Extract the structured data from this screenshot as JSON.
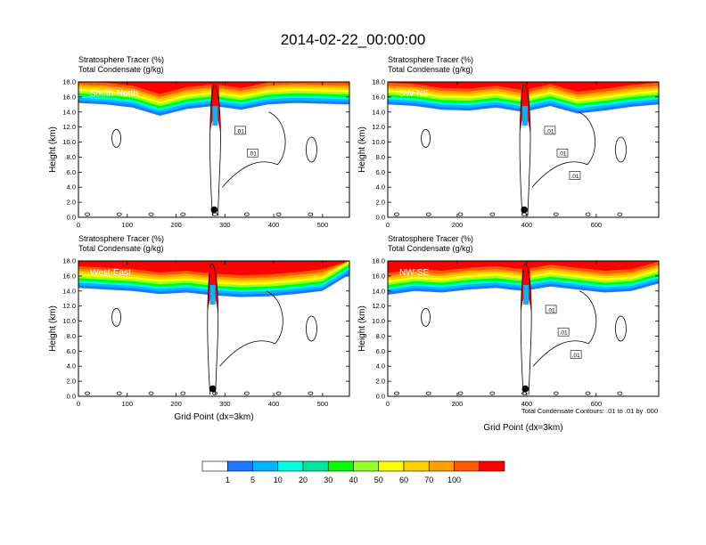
{
  "title": "2014-02-22_00:00:00",
  "footnote": "Total Condensate Contours: .01 to .01 by .000",
  "colorbar": {
    "labels": [
      "1",
      "5",
      "10",
      "20",
      "30",
      "40",
      "50",
      "60",
      "70",
      "100"
    ],
    "colors": [
      "#ffffff",
      "#1e78ff",
      "#00b4ff",
      "#00ffe1",
      "#00e6a0",
      "#00ff00",
      "#96ff28",
      "#ffff00",
      "#ffd200",
      "#ffa000",
      "#ff5a00",
      "#ff0000"
    ]
  },
  "chart_data": [
    {
      "type": "heatmap",
      "panel": "South-North",
      "title_lines": [
        "Stratosphere Tracer   (%)",
        "Total Condensate   (g/kg)"
      ],
      "ylabel": "Height (km)",
      "xlabel": "",
      "xlim": [
        0,
        555
      ],
      "ylim": [
        0,
        18
      ],
      "xticks": [
        0,
        100,
        200,
        300,
        400,
        500
      ],
      "yticks": [
        "0.0",
        "2.0",
        "4.0",
        "6.0",
        "8.0",
        "10.0",
        "12.0",
        "14.0",
        "16.0",
        "18.0"
      ],
      "tracer_base_km": [
        15.2,
        15.0,
        14.6,
        13.5,
        14.4,
        14.8,
        14.3,
        15.0,
        15.2,
        15.1,
        15.0
      ],
      "convective_core_x": 280,
      "contour_labels": [
        ".01",
        ".01"
      ],
      "marker_x": 278
    },
    {
      "type": "heatmap",
      "panel": "SW-NE",
      "title_lines": [
        "Stratosphere Tracer   (%)",
        "Total Condensate   (g/kg)"
      ],
      "ylabel": "Height (km)",
      "xlabel": "",
      "xlim": [
        0,
        780
      ],
      "ylim": [
        0,
        18
      ],
      "xticks": [
        0,
        200,
        400,
        600
      ],
      "yticks": [
        "0.0",
        "2.0",
        "4.0",
        "6.0",
        "8.0",
        "10.0",
        "12.0",
        "14.0",
        "16.0",
        "18.0"
      ],
      "tracer_base_km": [
        15.0,
        14.8,
        14.3,
        14.2,
        14.6,
        14.0,
        14.8,
        13.8,
        14.2,
        14.7,
        15.0
      ],
      "convective_core_x": 395,
      "contour_labels": [
        ".01",
        ".01",
        ".01"
      ],
      "marker_x": 393
    },
    {
      "type": "heatmap",
      "panel": "West-East",
      "title_lines": [
        "Stratosphere Tracer   (%)",
        "Total Condensate   (g/kg)"
      ],
      "ylabel": "Height (km)",
      "xlabel": "Grid Point (dx=3km)",
      "xlim": [
        0,
        555
      ],
      "ylim": [
        0,
        18
      ],
      "xticks": [
        0,
        100,
        200,
        300,
        400,
        500
      ],
      "yticks": [
        "0.0",
        "2.0",
        "4.0",
        "6.0",
        "8.0",
        "10.0",
        "12.0",
        "14.0",
        "16.0",
        "18.0"
      ],
      "tracer_base_km": [
        14.4,
        14.2,
        14.0,
        13.6,
        13.8,
        13.4,
        13.2,
        13.3,
        13.6,
        14.0,
        16.2
      ],
      "convective_core_x": 275,
      "contour_labels": [],
      "marker_x": 275
    },
    {
      "type": "heatmap",
      "panel": "NW-SE",
      "title_lines": [
        "Stratosphere Tracer   (%)",
        "Total Condensate   (g/kg)"
      ],
      "ylabel": "Height (km)",
      "xlabel": "Grid Point (dx=3km)",
      "xlim": [
        0,
        780
      ],
      "ylim": [
        0,
        18
      ],
      "xticks": [
        0,
        200,
        400,
        600
      ],
      "yticks": [
        "0.0",
        "2.0",
        "4.0",
        "6.0",
        "8.0",
        "10.0",
        "12.0",
        "14.0",
        "16.0",
        "18.0"
      ],
      "tracer_base_km": [
        13.5,
        14.0,
        13.8,
        14.2,
        14.4,
        14.0,
        14.6,
        14.2,
        13.8,
        14.0,
        15.0
      ],
      "convective_core_x": 398,
      "contour_labels": [
        ".01",
        ".01",
        ".01"
      ],
      "marker_x": 396
    }
  ]
}
